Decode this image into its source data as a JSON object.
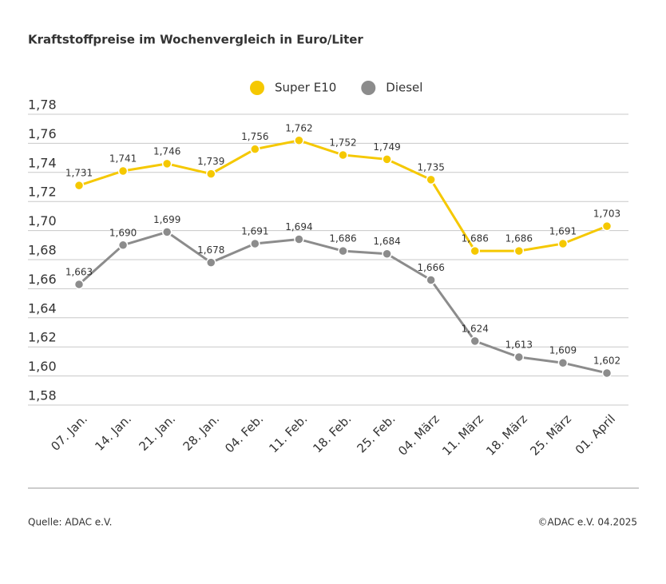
{
  "chart_data": {
    "type": "line",
    "title": "Kraftstoffpreise im Wochenvergleich in Euro/Liter",
    "categories": [
      "07. Jan.",
      "14. Jan.",
      "21. Jan.",
      "28. Jan.",
      "04. Feb.",
      "11. Feb.",
      "18. Feb.",
      "25. Feb.",
      "04. März",
      "11. März",
      "18. März",
      "25. März",
      "01. April"
    ],
    "series": [
      {
        "name": "Super E10",
        "color": "#f5c800",
        "values": [
          1.731,
          1.741,
          1.746,
          1.739,
          1.756,
          1.762,
          1.752,
          1.749,
          1.735,
          1.686,
          1.686,
          1.691,
          1.703
        ],
        "value_labels": [
          "1,731",
          "1,741",
          "1,746",
          "1,739",
          "1,756",
          "1,762",
          "1,752",
          "1,749",
          "1,735",
          "1,686",
          "1,686",
          "1,691",
          "1,703"
        ]
      },
      {
        "name": "Diesel",
        "color": "#8c8c8c",
        "values": [
          1.663,
          1.69,
          1.699,
          1.678,
          1.691,
          1.694,
          1.686,
          1.684,
          1.666,
          1.624,
          1.613,
          1.609,
          1.602
        ],
        "value_labels": [
          "1,663",
          "1,690",
          "1,699",
          "1,678",
          "1,691",
          "1,694",
          "1,686",
          "1,684",
          "1,666",
          "1,624",
          "1,613",
          "1,609",
          "1,602"
        ]
      }
    ],
    "ylim": [
      1.58,
      1.78
    ],
    "yticks": [
      {
        "value": 1.58,
        "label": "1,58"
      },
      {
        "value": 1.6,
        "label": "1,60"
      },
      {
        "value": 1.62,
        "label": "1,62"
      },
      {
        "value": 1.64,
        "label": "1,64"
      },
      {
        "value": 1.66,
        "label": "1,66"
      },
      {
        "value": 1.68,
        "label": "1,68"
      },
      {
        "value": 1.7,
        "label": "1,70"
      },
      {
        "value": 1.72,
        "label": "1,72"
      },
      {
        "value": 1.74,
        "label": "1,74"
      },
      {
        "value": 1.76,
        "label": "1,76"
      },
      {
        "value": 1.78,
        "label": "1,78"
      }
    ],
    "grid": true,
    "legend": "top",
    "source": "Quelle: ADAC e.V.",
    "credit": "©ADAC e.V. 04.2025"
  }
}
